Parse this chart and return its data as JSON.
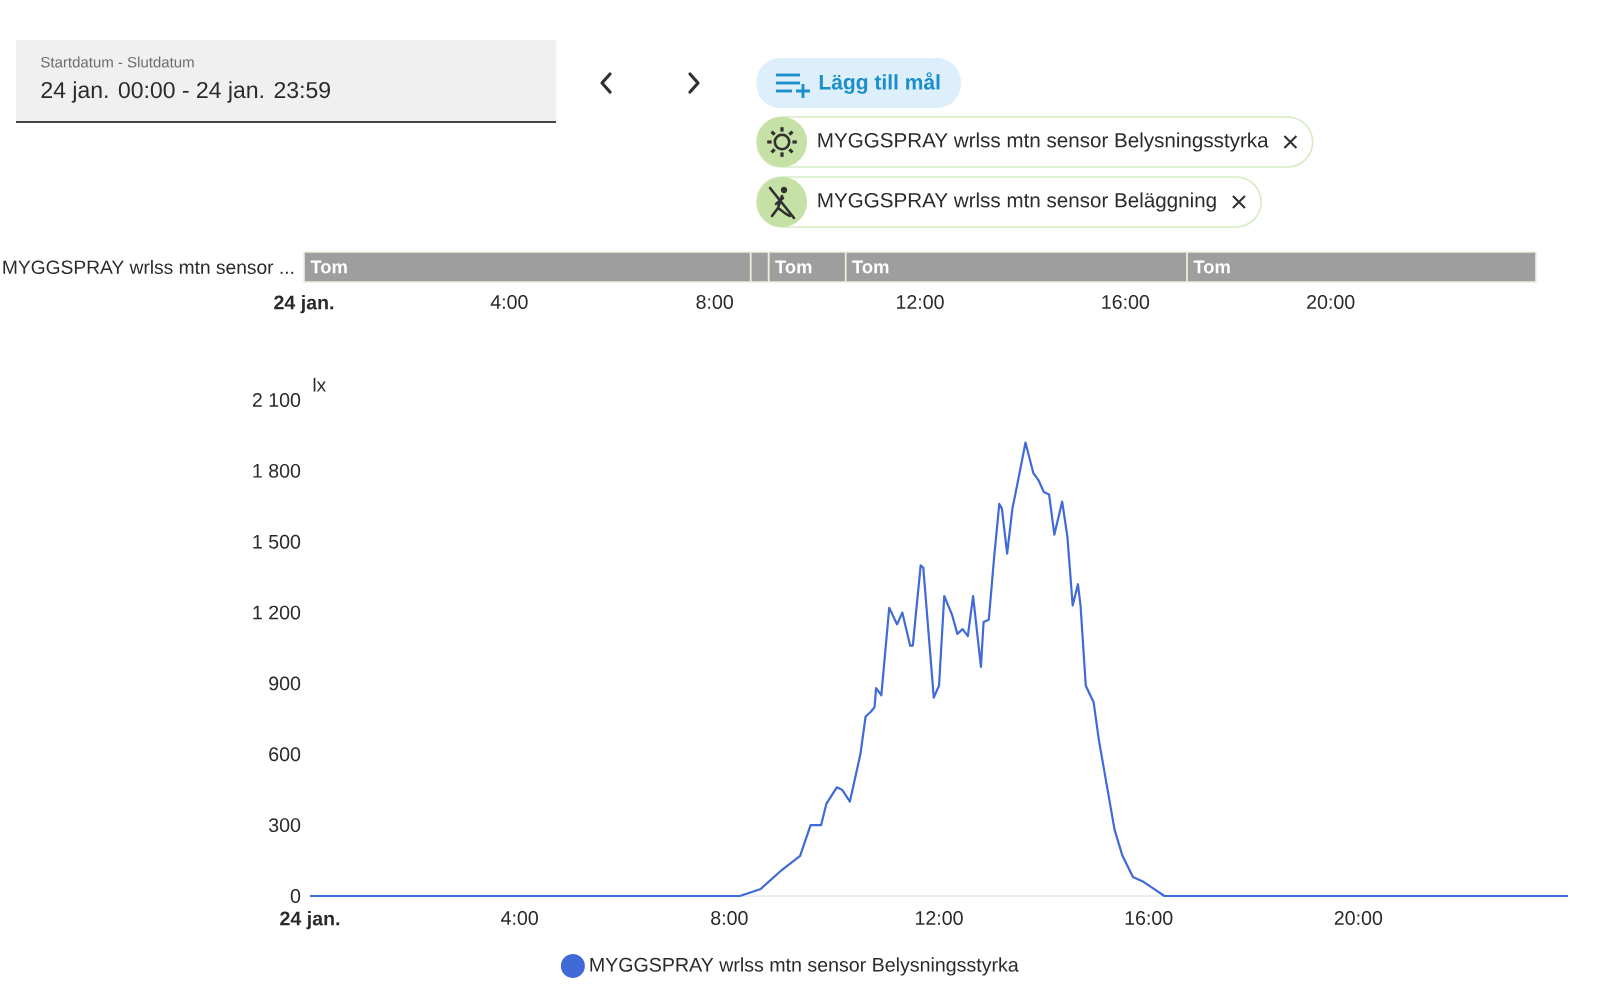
{
  "chart_data": [
    {
      "type": "other",
      "annotations": [
        "Startdatum - Slutdatum",
        "24 jan. 00:00 - 24 jan. 23:59",
        "Lägg till mål",
        "MYGGSPRAY wrlss mtn sensor Belysningsstyrka",
        "MYGGSPRAY wrlss mtn sensor Beläggning"
      ]
    },
    {
      "type": "bar",
      "orientation": "horizontal",
      "stacked": true,
      "categories": [
        "MYGGSPRAY wrlss mtn sensor ..."
      ],
      "series": [
        {
          "name": "Tom",
          "color": "#9e9e9e",
          "values": [
            8.7
          ]
        },
        {
          "color": "#9e9e9e",
          "values": [
            0.35
          ]
        },
        {
          "name": "Tom",
          "color": "#9e9e9e",
          "values": [
            1.5
          ]
        },
        {
          "name": "Tom",
          "color": "#9e9e9e",
          "values": [
            6.65
          ]
        },
        {
          "name": "Tom",
          "color": "#9e9e9e",
          "values": [
            6.8
          ]
        }
      ],
      "xlim": [
        0,
        24
      ],
      "xticks": [
        {
          "value": 0,
          "label": "**24 jan.**"
        },
        {
          "value": 4,
          "label": "4:00"
        },
        {
          "value": 8,
          "label": "8:00"
        },
        {
          "value": 12,
          "label": "12:00"
        },
        {
          "value": 16,
          "label": "16:00"
        },
        {
          "value": 20,
          "label": "20:00"
        }
      ]
    },
    {
      "type": "line",
      "ylabel": "lx",
      "legend": "bottom",
      "marker": "none",
      "line_style": "solid",
      "series": [
        {
          "name": "MYGGSPRAY wrlss mtn sensor Belysningsstyrka",
          "color": "#3f6ad8",
          "x": [
            0,
            8.2,
            8.6,
            9.0,
            9.35,
            9.55,
            9.75,
            9.85,
            10.05,
            10.15,
            10.3,
            10.5,
            10.6,
            10.7,
            10.77,
            10.8,
            10.9,
            11.05,
            11.2,
            11.3,
            11.45,
            11.5,
            11.65,
            11.7,
            11.9,
            12.0,
            12.1,
            12.25,
            12.35,
            12.45,
            12.55,
            12.65,
            12.8,
            12.85,
            12.95,
            13.05,
            13.15,
            13.2,
            13.3,
            13.4,
            13.5,
            13.65,
            13.8,
            13.9,
            14.0,
            14.1,
            14.2,
            14.35,
            14.45,
            14.55,
            14.65,
            14.7,
            14.8,
            14.95,
            15.05,
            15.2,
            15.35,
            15.5,
            15.7,
            15.9,
            16.1,
            16.3,
            24
          ],
          "values": [
            0,
            0,
            30,
            110,
            170,
            300,
            300,
            390,
            460,
            450,
            400,
            600,
            760,
            780,
            800,
            880,
            850,
            1220,
            1150,
            1200,
            1060,
            1060,
            1400,
            1390,
            840,
            890,
            1270,
            1190,
            1110,
            1130,
            1100,
            1270,
            970,
            1160,
            1170,
            1430,
            1660,
            1640,
            1450,
            1640,
            1750,
            1920,
            1790,
            1760,
            1710,
            1700,
            1530,
            1670,
            1520,
            1230,
            1320,
            1230,
            890,
            820,
            660,
            470,
            280,
            170,
            80,
            60,
            30,
            0,
            0
          ]
        }
      ],
      "xlim": [
        0,
        24
      ],
      "xticks": [
        {
          "value": 0,
          "label": "**24 jan.**"
        },
        {
          "value": 4,
          "label": "4:00"
        },
        {
          "value": 8,
          "label": "8:00"
        },
        {
          "value": 12,
          "label": "12:00"
        },
        {
          "value": 16,
          "label": "16:00"
        },
        {
          "value": 20,
          "label": "20:00"
        }
      ],
      "ylim": [
        0,
        2100
      ],
      "yticks": [
        0,
        300,
        600,
        900,
        {
          "value": 1200,
          "label": "1 200"
        },
        {
          "value": 1500,
          "label": "1 500"
        },
        {
          "value": 1800,
          "label": "1 800"
        },
        {
          "value": 2100,
          "label": "2 100"
        }
      ]
    }
  ]
}
